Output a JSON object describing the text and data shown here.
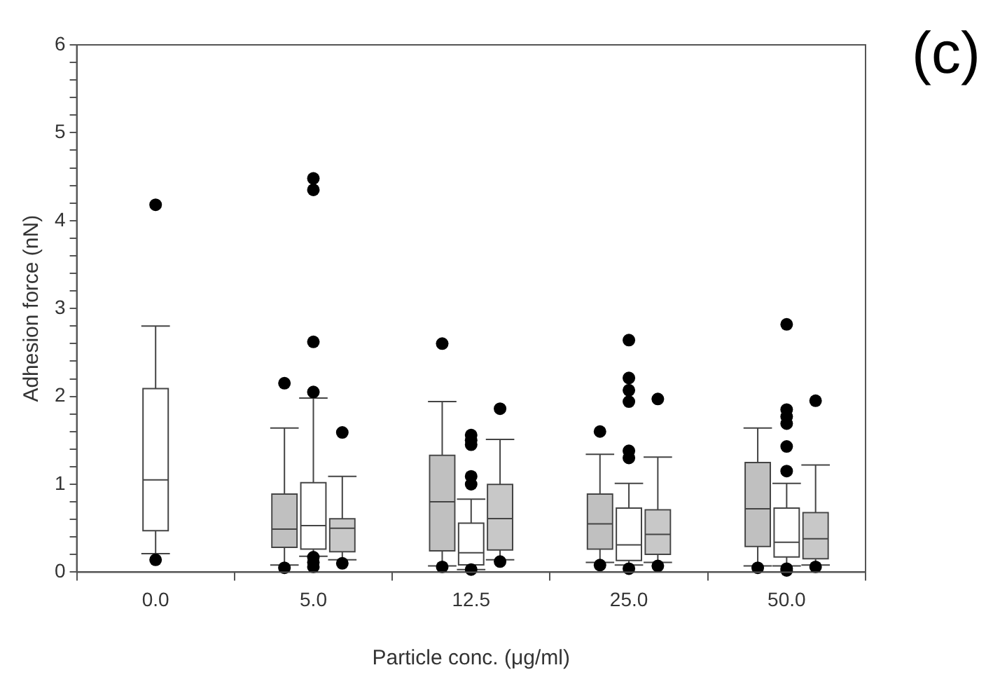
{
  "chart_data": {
    "type": "box",
    "title": "(c)",
    "xlabel": "Particle conc. (μg/ml)",
    "ylabel": "Adhesion force (nN)",
    "categories": [
      "0.0",
      "5.0",
      "12.5",
      "25.0",
      "50.0"
    ],
    "ylim": [
      0,
      6
    ],
    "yticks": [
      0,
      {
        "value": 0.2,
        "label": null
      },
      {
        "value": 0.4,
        "label": null
      },
      {
        "value": 0.6,
        "label": null
      },
      {
        "value": 0.8,
        "label": null
      },
      1,
      {
        "value": 1.2,
        "label": null
      },
      {
        "value": 1.4,
        "label": null
      },
      {
        "value": 1.6,
        "label": null
      },
      {
        "value": 1.8,
        "label": null
      },
      2,
      {
        "value": 2.2,
        "label": null
      },
      {
        "value": 2.4,
        "label": null
      },
      {
        "value": 2.6,
        "label": null
      },
      {
        "value": 2.8,
        "label": null
      },
      3,
      {
        "value": 3.2,
        "label": null
      },
      {
        "value": 3.4,
        "label": null
      },
      {
        "value": 3.6,
        "label": null
      },
      {
        "value": 3.8,
        "label": null
      },
      4,
      {
        "value": 4.2,
        "label": null
      },
      {
        "value": 4.4,
        "label": null
      },
      {
        "value": 4.6,
        "label": null
      },
      {
        "value": 4.8,
        "label": null
      },
      5,
      {
        "value": 5.2,
        "label": null
      },
      {
        "value": 5.4,
        "label": null
      },
      {
        "value": 5.6,
        "label": null
      },
      {
        "value": 5.8,
        "label": null
      },
      6
    ],
    "grid": false,
    "legend": false,
    "marker": "circle",
    "series": [
      {
        "color": "#ffffff",
        "boxes": [
          {
            "low": 0.21,
            "q1": 0.48,
            "median": 1.05,
            "q3": 2.08,
            "high": 2.8,
            "outliers": [
              4.18,
              0.14
            ]
          },
          null,
          null,
          null,
          null
        ]
      },
      {
        "color": "#c0c0c0",
        "boxes": [
          null,
          {
            "low": 0.08,
            "q1": 0.29,
            "median": 0.49,
            "q3": 0.88,
            "high": 1.64,
            "outliers": [
              2.15,
              0.05
            ]
          },
          {
            "low": 0.07,
            "q1": 0.25,
            "median": 0.8,
            "q3": 1.32,
            "high": 1.94,
            "outliers": [
              2.6,
              0.06
            ]
          },
          {
            "low": 0.11,
            "q1": 0.27,
            "median": 0.55,
            "q3": 0.88,
            "high": 1.34,
            "outliers": [
              1.6,
              0.08
            ]
          },
          {
            "low": 0.07,
            "q1": 0.3,
            "median": 0.72,
            "q3": 1.24,
            "high": 1.64,
            "outliers": [
              0.05
            ]
          }
        ]
      },
      {
        "color": "#ffffff",
        "boxes": [
          null,
          {
            "low": 0.18,
            "q1": 0.27,
            "median": 0.53,
            "q3": 1.01,
            "high": 1.98,
            "outliers": [
              4.48,
              4.35,
              2.62,
              2.05,
              0.17,
              0.11,
              0.06
            ]
          },
          {
            "low": 0.03,
            "q1": 0.09,
            "median": 0.22,
            "q3": 0.55,
            "high": 0.83,
            "outliers": [
              1.56,
              1.5,
              1.45,
              1.09,
              1.0,
              0.03
            ]
          },
          {
            "low": 0.08,
            "q1": 0.14,
            "median": 0.31,
            "q3": 0.72,
            "high": 1.01,
            "outliers": [
              2.64,
              2.21,
              2.07,
              1.94,
              1.38,
              1.3,
              0.04
            ]
          },
          {
            "low": 0.07,
            "q1": 0.18,
            "median": 0.34,
            "q3": 0.72,
            "high": 1.01,
            "outliers": [
              2.82,
              1.85,
              1.77,
              1.69,
              1.43,
              1.15,
              0.04,
              0.02
            ]
          }
        ]
      },
      {
        "color": "#c8c8c8",
        "boxes": [
          null,
          {
            "low": 0.14,
            "q1": 0.24,
            "median": 0.5,
            "q3": 0.6,
            "high": 1.09,
            "outliers": [
              1.59,
              0.1
            ]
          },
          {
            "low": 0.14,
            "q1": 0.26,
            "median": 0.61,
            "q3": 0.99,
            "high": 1.51,
            "outliers": [
              1.86,
              0.12
            ]
          },
          {
            "low": 0.11,
            "q1": 0.21,
            "median": 0.43,
            "q3": 0.7,
            "high": 1.31,
            "outliers": [
              1.97,
              0.07
            ]
          },
          {
            "low": 0.08,
            "q1": 0.16,
            "median": 0.38,
            "q3": 0.67,
            "high": 1.22,
            "outliers": [
              1.95,
              0.06
            ]
          }
        ]
      }
    ]
  }
}
